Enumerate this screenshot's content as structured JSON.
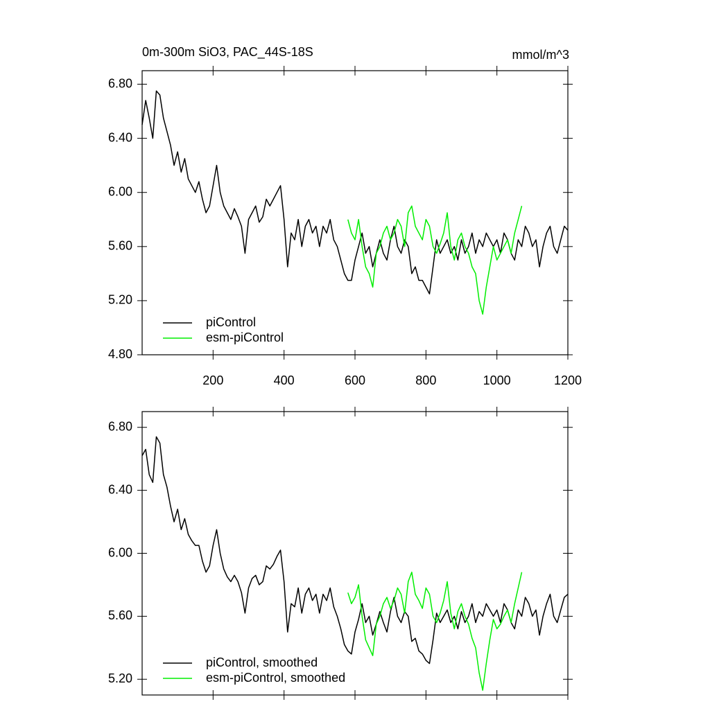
{
  "chart_data": [
    {
      "type": "line",
      "title": "0m-300m SiO3, PAC_44S-18S",
      "units": "mmol/m^3",
      "xlim": [
        0,
        1200
      ],
      "ylim": [
        4.8,
        6.9
      ],
      "xticks": [
        200,
        400,
        600,
        800,
        1000,
        1200
      ],
      "yticks": [
        {
          "value": 4.8,
          "label": "4.80"
        },
        {
          "value": 5.2,
          "label": "5.20"
        },
        {
          "value": 5.6,
          "label": "5.60"
        },
        {
          "value": 6.0,
          "label": "6.00"
        },
        {
          "value": 6.4,
          "label": "6.40"
        },
        {
          "value": 6.8,
          "label": "6.80"
        }
      ],
      "legend": "lower left",
      "series": [
        {
          "name": "piControl",
          "color": "#000000",
          "x": [
            0,
            10,
            20,
            30,
            40,
            50,
            60,
            70,
            80,
            90,
            100,
            110,
            120,
            130,
            140,
            150,
            160,
            170,
            180,
            190,
            200,
            210,
            220,
            230,
            240,
            250,
            260,
            270,
            280,
            290,
            300,
            310,
            320,
            330,
            340,
            350,
            360,
            370,
            380,
            390,
            400,
            410,
            420,
            430,
            440,
            450,
            460,
            470,
            480,
            490,
            500,
            510,
            520,
            530,
            540,
            550,
            560,
            570,
            580,
            590,
            600,
            610,
            620,
            630,
            640,
            650,
            660,
            670,
            680,
            690,
            700,
            710,
            720,
            730,
            740,
            750,
            760,
            770,
            780,
            790,
            800,
            810,
            820,
            830,
            840,
            850,
            860,
            870,
            880,
            890,
            900,
            910,
            920,
            930,
            940,
            950,
            960,
            970,
            980,
            990,
            1000,
            1010,
            1020,
            1030,
            1040,
            1050,
            1060,
            1070,
            1080,
            1090,
            1100,
            1110,
            1120,
            1130,
            1140,
            1150,
            1160,
            1170,
            1180,
            1190,
            1200
          ],
          "values": [
            6.5,
            6.68,
            6.55,
            6.4,
            6.75,
            6.72,
            6.55,
            6.45,
            6.35,
            6.2,
            6.3,
            6.15,
            6.25,
            6.1,
            6.05,
            6.0,
            6.08,
            5.95,
            5.85,
            5.9,
            6.05,
            6.2,
            6.0,
            5.9,
            5.85,
            5.8,
            5.88,
            5.82,
            5.75,
            5.55,
            5.8,
            5.85,
            5.9,
            5.78,
            5.82,
            5.95,
            5.9,
            5.95,
            6.0,
            6.05,
            5.8,
            5.45,
            5.7,
            5.65,
            5.8,
            5.6,
            5.75,
            5.8,
            5.7,
            5.75,
            5.6,
            5.75,
            5.7,
            5.8,
            5.65,
            5.6,
            5.5,
            5.4,
            5.35,
            5.35,
            5.5,
            5.6,
            5.7,
            5.55,
            5.6,
            5.45,
            5.55,
            5.65,
            5.55,
            5.5,
            5.65,
            5.75,
            5.6,
            5.55,
            5.65,
            5.6,
            5.4,
            5.45,
            5.35,
            5.35,
            5.3,
            5.25,
            5.45,
            5.65,
            5.55,
            5.6,
            5.65,
            5.55,
            5.6,
            5.5,
            5.65,
            5.55,
            5.6,
            5.7,
            5.55,
            5.65,
            5.6,
            5.7,
            5.65,
            5.6,
            5.65,
            5.55,
            5.7,
            5.65,
            5.55,
            5.5,
            5.65,
            5.6,
            5.75,
            5.7,
            5.6,
            5.65,
            5.45,
            5.6,
            5.7,
            5.75,
            5.6,
            5.55,
            5.65,
            5.75,
            5.72
          ]
        },
        {
          "name": "esm-piControl",
          "color": "#00ee00",
          "x": [
            580,
            590,
            600,
            610,
            620,
            630,
            640,
            650,
            660,
            670,
            680,
            690,
            700,
            710,
            720,
            730,
            740,
            750,
            760,
            770,
            780,
            790,
            800,
            810,
            820,
            830,
            840,
            850,
            860,
            870,
            880,
            890,
            900,
            910,
            920,
            930,
            940,
            950,
            960,
            970,
            980,
            990,
            1000,
            1010,
            1020,
            1030,
            1040,
            1050,
            1060,
            1070
          ],
          "values": [
            5.8,
            5.7,
            5.65,
            5.8,
            5.6,
            5.45,
            5.4,
            5.3,
            5.55,
            5.6,
            5.7,
            5.75,
            5.65,
            5.7,
            5.8,
            5.75,
            5.6,
            5.85,
            5.9,
            5.75,
            5.7,
            5.65,
            5.8,
            5.75,
            5.6,
            5.55,
            5.62,
            5.7,
            5.85,
            5.6,
            5.5,
            5.65,
            5.7,
            5.6,
            5.55,
            5.45,
            5.4,
            5.2,
            5.1,
            5.3,
            5.45,
            5.6,
            5.5,
            5.55,
            5.6,
            5.65,
            5.55,
            5.7,
            5.8,
            5.9
          ]
        }
      ]
    },
    {
      "type": "line",
      "xlim": [
        0,
        1200
      ],
      "ylim": [
        5.1,
        6.9
      ],
      "xticks": [
        200,
        400,
        600,
        800,
        1000,
        1200
      ],
      "yticks": [
        {
          "value": 5.2,
          "label": "5.20"
        },
        {
          "value": 5.6,
          "label": "5.60"
        },
        {
          "value": 6.0,
          "label": "6.00"
        },
        {
          "value": 6.4,
          "label": "6.40"
        },
        {
          "value": 6.8,
          "label": "6.80"
        }
      ],
      "legend": "lower left",
      "series": [
        {
          "name": "piControl, smoothed",
          "color": "#000000",
          "x": [
            0,
            10,
            20,
            30,
            40,
            50,
            60,
            70,
            80,
            90,
            100,
            110,
            120,
            130,
            140,
            150,
            160,
            170,
            180,
            190,
            200,
            210,
            220,
            230,
            240,
            250,
            260,
            270,
            280,
            290,
            300,
            310,
            320,
            330,
            340,
            350,
            360,
            370,
            380,
            390,
            400,
            410,
            420,
            430,
            440,
            450,
            460,
            470,
            480,
            490,
            500,
            510,
            520,
            530,
            540,
            550,
            560,
            570,
            580,
            590,
            600,
            610,
            620,
            630,
            640,
            650,
            660,
            670,
            680,
            690,
            700,
            710,
            720,
            730,
            740,
            750,
            760,
            770,
            780,
            790,
            800,
            810,
            820,
            830,
            840,
            850,
            860,
            870,
            880,
            890,
            900,
            910,
            920,
            930,
            940,
            950,
            960,
            970,
            980,
            990,
            1000,
            1010,
            1020,
            1030,
            1040,
            1050,
            1060,
            1070,
            1080,
            1090,
            1100,
            1110,
            1120,
            1130,
            1140,
            1150,
            1160,
            1170,
            1180,
            1190,
            1200
          ],
          "values": [
            6.62,
            6.66,
            6.5,
            6.45,
            6.74,
            6.7,
            6.5,
            6.42,
            6.3,
            6.2,
            6.28,
            6.15,
            6.22,
            6.12,
            6.08,
            6.05,
            6.05,
            5.95,
            5.88,
            5.92,
            6.05,
            6.15,
            6.0,
            5.9,
            5.85,
            5.82,
            5.86,
            5.82,
            5.75,
            5.62,
            5.78,
            5.84,
            5.86,
            5.8,
            5.82,
            5.92,
            5.9,
            5.93,
            5.98,
            6.02,
            5.82,
            5.5,
            5.68,
            5.66,
            5.78,
            5.62,
            5.74,
            5.78,
            5.7,
            5.74,
            5.62,
            5.74,
            5.7,
            5.78,
            5.66,
            5.6,
            5.52,
            5.42,
            5.38,
            5.36,
            5.5,
            5.58,
            5.68,
            5.56,
            5.6,
            5.48,
            5.55,
            5.63,
            5.56,
            5.5,
            5.63,
            5.72,
            5.6,
            5.56,
            5.63,
            5.6,
            5.44,
            5.46,
            5.38,
            5.36,
            5.32,
            5.3,
            5.45,
            5.62,
            5.56,
            5.6,
            5.64,
            5.56,
            5.6,
            5.52,
            5.63,
            5.56,
            5.6,
            5.68,
            5.56,
            5.63,
            5.6,
            5.68,
            5.64,
            5.6,
            5.64,
            5.56,
            5.68,
            5.64,
            5.56,
            5.52,
            5.64,
            5.6,
            5.72,
            5.68,
            5.6,
            5.64,
            5.48,
            5.6,
            5.68,
            5.74,
            5.6,
            5.56,
            5.64,
            5.72,
            5.74
          ]
        },
        {
          "name": "esm-piControl, smoothed",
          "color": "#00ee00",
          "x": [
            580,
            590,
            600,
            610,
            620,
            630,
            640,
            650,
            660,
            670,
            680,
            690,
            700,
            710,
            720,
            730,
            740,
            750,
            760,
            770,
            780,
            790,
            800,
            810,
            820,
            830,
            840,
            850,
            860,
            870,
            880,
            890,
            900,
            910,
            920,
            930,
            940,
            950,
            960,
            970,
            980,
            990,
            1000,
            1010,
            1020,
            1030,
            1040,
            1050,
            1060,
            1070
          ],
          "values": [
            5.75,
            5.68,
            5.72,
            5.8,
            5.6,
            5.45,
            5.4,
            5.35,
            5.55,
            5.6,
            5.68,
            5.72,
            5.65,
            5.7,
            5.78,
            5.74,
            5.62,
            5.82,
            5.88,
            5.74,
            5.7,
            5.65,
            5.78,
            5.74,
            5.6,
            5.56,
            5.62,
            5.7,
            5.82,
            5.62,
            5.52,
            5.63,
            5.68,
            5.6,
            5.55,
            5.46,
            5.4,
            5.24,
            5.13,
            5.3,
            5.45,
            5.58,
            5.52,
            5.55,
            5.6,
            5.64,
            5.56,
            5.68,
            5.78,
            5.88
          ]
        }
      ]
    }
  ]
}
